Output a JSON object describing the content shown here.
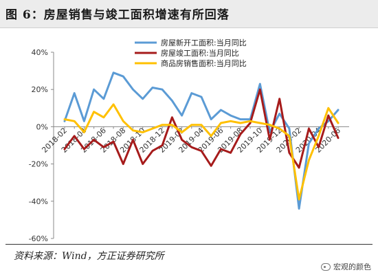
{
  "header": {
    "title": "图 6：房屋销售与竣工面积增速有所回落"
  },
  "footer": {
    "source": "资料来源：Wind，方正证券研究所",
    "brand": "宏观的颜色"
  },
  "colors": {
    "blue": "#5b9bd5",
    "red": "#a61b1b",
    "yellow": "#ffc000"
  },
  "chart_data": {
    "type": "line",
    "title": "",
    "xlabel": "",
    "ylabel": "",
    "ylim": [
      -60,
      40
    ],
    "yticks": [
      "40%",
      "20%",
      "0%",
      "-20%",
      "-40%",
      "-60%"
    ],
    "ytick_values": [
      40,
      20,
      0,
      -20,
      -40,
      -60
    ],
    "legend_position": "top-center",
    "grid": false,
    "x": [
      "2018-02",
      "2018-03",
      "2018-04",
      "2018-05",
      "2018-06",
      "2018-07",
      "2018-08",
      "2018-09",
      "2018-10",
      "2018-11",
      "2018-12",
      "2019-01",
      "2019-02",
      "2019-03",
      "2019-04",
      "2019-05",
      "2019-06",
      "2019-07",
      "2019-08",
      "2019-09",
      "2019-10",
      "2019-11",
      "2019-12",
      "2020-01",
      "2020-02",
      "2020-03",
      "2020-04",
      "2020-05",
      "2020-06"
    ],
    "xtick_labels": [
      "2018-02",
      "2018-04",
      "2018-06",
      "2018-08",
      "2018-10",
      "2018-12",
      "2019-02",
      "2019-04",
      "2019-06",
      "2019-08",
      "2019-10",
      "2019-12",
      "2020-02",
      "2020-04",
      "2020-06"
    ],
    "series": [
      {
        "name": "房屋新开工面积:当月同比",
        "color": "#5b9bd5",
        "values": [
          3,
          18,
          3,
          20,
          15,
          29,
          27,
          20,
          15,
          21,
          20,
          14,
          6,
          18,
          16,
          4,
          9,
          6,
          4,
          4,
          23,
          -3,
          7,
          -1,
          -44,
          -9,
          -1,
          3,
          9
        ]
      },
      {
        "name": "房屋竣工面积:当月同比",
        "color": "#a61b1b",
        "values": [
          -12,
          -5,
          -12,
          -7,
          -11,
          -8,
          -20,
          -7,
          -20,
          -13,
          -10,
          5,
          -7,
          -11,
          -13,
          -21,
          -12,
          -14,
          -4,
          2,
          20,
          -7,
          15,
          -14,
          -22,
          -1,
          -11,
          6,
          -6
        ]
      },
      {
        "name": "商品房销售面积:当月同比",
        "color": "#ffc000",
        "values": [
          4,
          3,
          -3,
          8,
          5,
          12,
          3,
          -2,
          -3,
          -1,
          1,
          1,
          -3,
          1,
          1,
          -5,
          2,
          3,
          2,
          3,
          2,
          1,
          -1,
          -5,
          -39,
          -18,
          -5,
          10,
          2
        ]
      }
    ]
  }
}
